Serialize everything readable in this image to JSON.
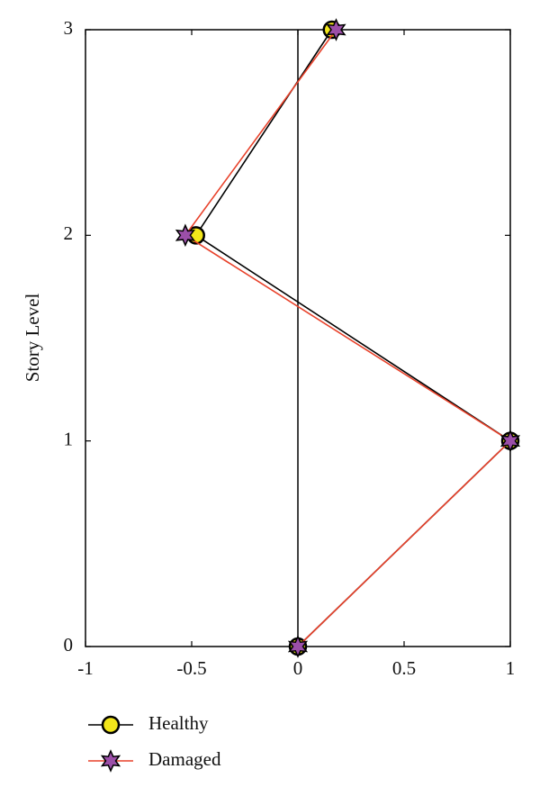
{
  "chart_data": {
    "type": "line",
    "ylabel": "Story Level",
    "y": [
      0,
      1,
      2,
      3
    ],
    "series": [
      {
        "name": "Healthy",
        "color": "#000000",
        "marker": "circle",
        "marker_color": "#f2e61b",
        "values": [
          0,
          1,
          -0.48,
          0.16
        ]
      },
      {
        "name": "Damaged",
        "color": "#e8412a",
        "marker": "star",
        "marker_color": "#9b4fa8",
        "values": [
          0,
          1,
          -0.53,
          0.18
        ]
      }
    ],
    "xlim": [
      -1,
      1
    ],
    "xticks": [
      -1,
      -0.5,
      0,
      0.5,
      1
    ],
    "ylim": [
      0,
      3
    ],
    "yticks": [
      0,
      1,
      2,
      3
    ],
    "zero_line": true,
    "legend": "bottom"
  }
}
